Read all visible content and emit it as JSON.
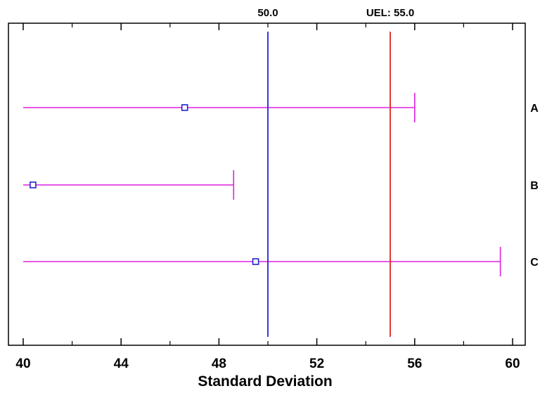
{
  "chart_data": {
    "type": "interval",
    "xlabel": "Standard Deviation",
    "xlim": [
      40,
      60
    ],
    "x_ticks": [
      40,
      44,
      48,
      52,
      56,
      60
    ],
    "x_minor_ticks": [
      42,
      46,
      50,
      54,
      58
    ],
    "x_tick_labels": [
      "40",
      "44",
      "48",
      "52",
      "56",
      "60"
    ],
    "grid": false,
    "reference_lines": [
      {
        "label": "50.0",
        "value": 50.0,
        "color": "#2222dd"
      },
      {
        "label": "UEL: 55.0",
        "value": 55.0,
        "color": "#dd2222"
      }
    ],
    "series": [
      {
        "label": "A",
        "estimate": 46.6,
        "lower": 40.0,
        "upper": 56.0
      },
      {
        "label": "B",
        "estimate": 40.4,
        "lower": 40.0,
        "upper": 48.6
      },
      {
        "label": "C",
        "estimate": 49.5,
        "lower": 40.0,
        "upper": 59.5
      }
    ],
    "colors": {
      "interval": "#e020e0",
      "estimate_marker": "#2222cc",
      "axis": "#000000"
    }
  }
}
